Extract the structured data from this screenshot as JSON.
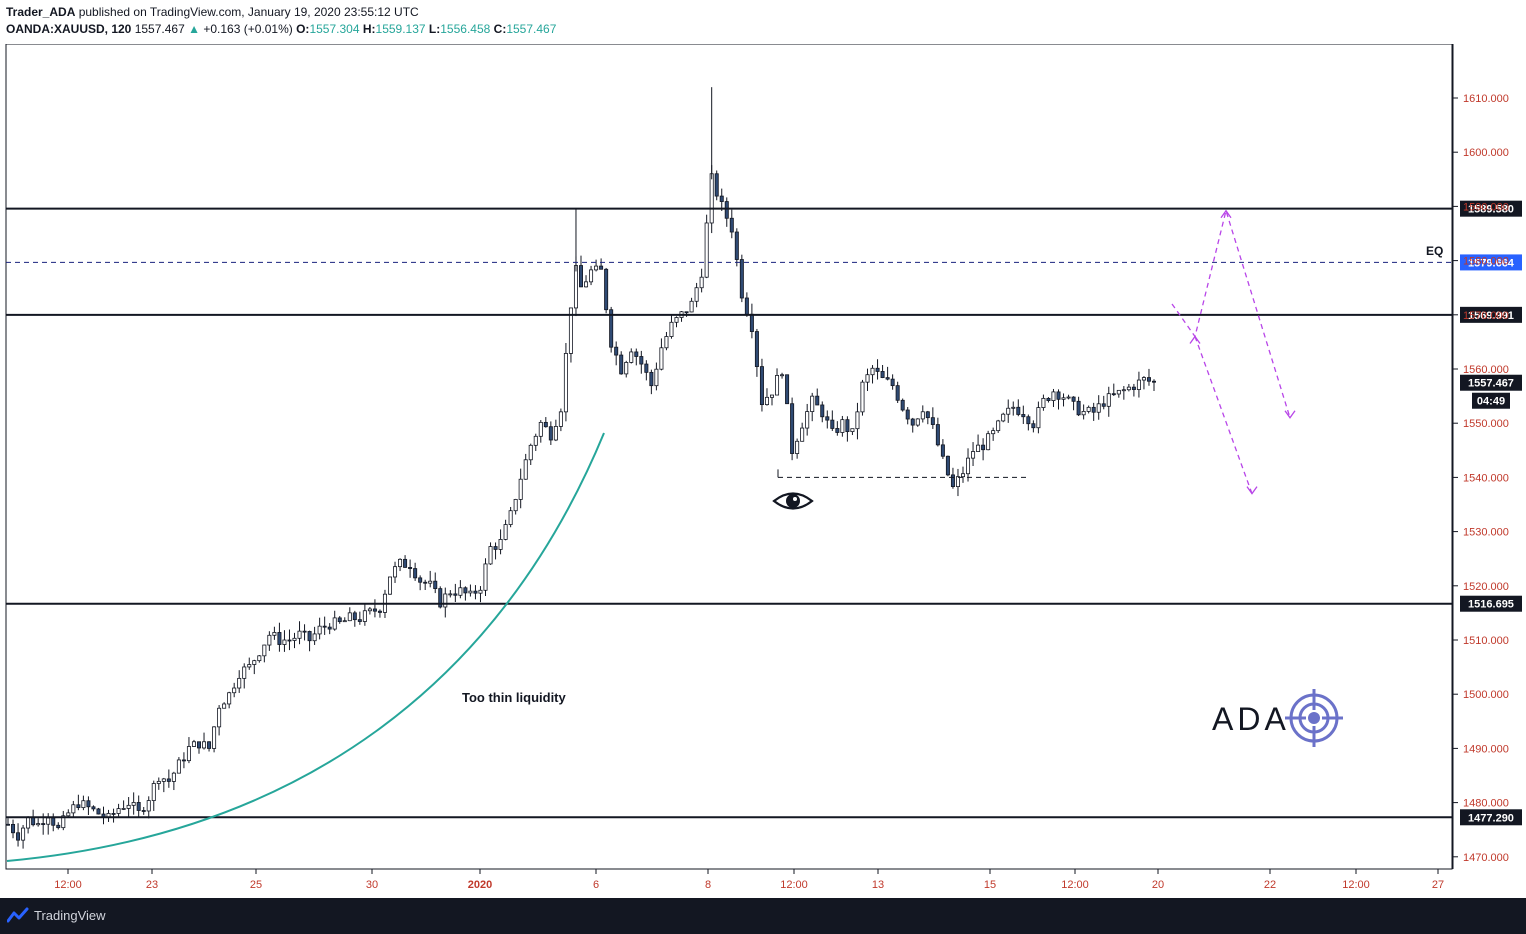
{
  "header": {
    "author": "Trader_ADA",
    "published_text": "published on TradingView.com, January 19, 2020 23:55:12 UTC",
    "symbol": "OANDA:XAUUSD, 120",
    "last": "1557.467",
    "arrow": "▲",
    "change": "+0.163 (+0.01%)",
    "o_label": "O:",
    "o_value": "1557.304",
    "h_label": "H:",
    "h_value": "1559.137",
    "l_label": "L:",
    "l_value": "1556.458",
    "c_label": "C:",
    "c_value": "1557.467"
  },
  "footer": {
    "brand": "TradingView",
    "logo_icon": "tradingview-logo-icon"
  },
  "annotations": {
    "eq_label": "EQ",
    "liquidity_text": "Too thin liquidity",
    "watermark": "ADA",
    "watermark_icon": "target-crosshair-icon",
    "eye_icon": "eye-icon"
  },
  "colors": {
    "candle_up": "#ffffff",
    "candle_down": "#2f4a73",
    "wick": "#131722",
    "eq_line": "#1a237e",
    "projection": "#b845e8",
    "curve": "#26a69a",
    "price_label_bg": "#131722",
    "current_price_bg": "#131722",
    "eq_label_bg": "#2962ff",
    "axis_text": "#c0392b",
    "watermark_icon": "#6b72c9"
  },
  "chart_data": {
    "type": "candlestick",
    "symbol": "OANDA:XAUUSD",
    "interval": "120",
    "y_axis": {
      "ticks": [
        1470,
        1480,
        1490,
        1500,
        1510,
        1520,
        1530,
        1540,
        1550,
        1560,
        1570,
        1580,
        1590,
        1600,
        1610
      ],
      "tick_labels": [
        "1470.000",
        "1480.000",
        "1490.000",
        "1500.000",
        "1510.000",
        "1520.000",
        "1530.000",
        "1540.000",
        "1550.000",
        "1560.000",
        "1570.000",
        "1580.000",
        "1590.000",
        "1600.000",
        "1610.000"
      ],
      "range": [
        1465,
        1623
      ]
    },
    "x_axis": {
      "labels": [
        "12:00",
        "23",
        "25",
        "30",
        "2020",
        "6",
        "8",
        "12:00",
        "13",
        "15",
        "12:00",
        "20",
        "22",
        "12:00",
        "27"
      ],
      "bold": [
        "2020"
      ]
    },
    "horizontal_levels": [
      {
        "price": 1589.58,
        "label": "1589.580",
        "style": "solid"
      },
      {
        "price": 1579.664,
        "label": "1579.664",
        "style": "dashed",
        "name": "EQ"
      },
      {
        "price": 1569.991,
        "label": "1569.991",
        "style": "solid"
      },
      {
        "price": 1516.695,
        "label": "1516.695",
        "style": "solid"
      },
      {
        "price": 1477.29,
        "label": "1477.290",
        "style": "solid"
      }
    ],
    "current_price": {
      "price": 1557.467,
      "label": "1557.467",
      "countdown": "04:49"
    },
    "liquidity_level": {
      "price": 1540.0
    },
    "price_path": [
      [
        0,
        1476
      ],
      [
        2,
        1474
      ],
      [
        4,
        1477
      ],
      [
        6,
        1476
      ],
      [
        8,
        1478
      ],
      [
        10,
        1475
      ],
      [
        12,
        1478
      ],
      [
        14,
        1480
      ],
      [
        16,
        1479
      ],
      [
        18,
        1478
      ],
      [
        20,
        1477
      ],
      [
        22,
        1479
      ],
      [
        24,
        1480
      ],
      [
        26,
        1478
      ],
      [
        28,
        1481
      ],
      [
        30,
        1485
      ],
      [
        32,
        1484
      ],
      [
        34,
        1487
      ],
      [
        36,
        1490
      ],
      [
        38,
        1491
      ],
      [
        40,
        1490
      ],
      [
        42,
        1498
      ],
      [
        44,
        1500
      ],
      [
        46,
        1504
      ],
      [
        48,
        1505
      ],
      [
        50,
        1508
      ],
      [
        52,
        1511
      ],
      [
        54,
        1510
      ],
      [
        56,
        1510
      ],
      [
        58,
        1511
      ],
      [
        60,
        1510
      ],
      [
        62,
        1512
      ],
      [
        64,
        1513
      ],
      [
        66,
        1513
      ],
      [
        68,
        1514
      ],
      [
        70,
        1514
      ],
      [
        72,
        1515
      ],
      [
        74,
        1516
      ],
      [
        76,
        1522
      ],
      [
        78,
        1524
      ],
      [
        80,
        1524
      ],
      [
        82,
        1521
      ],
      [
        84,
        1520
      ],
      [
        86,
        1517
      ],
      [
        88,
        1519
      ],
      [
        90,
        1519
      ],
      [
        92,
        1518
      ],
      [
        94,
        1520
      ],
      [
        96,
        1527
      ],
      [
        98,
        1528
      ],
      [
        100,
        1533
      ],
      [
        102,
        1540
      ],
      [
        104,
        1546
      ],
      [
        106,
        1550
      ],
      [
        108,
        1548
      ],
      [
        110,
        1553
      ],
      [
        112,
        1572
      ],
      [
        113,
        1578
      ],
      [
        114,
        1575
      ],
      [
        116,
        1578
      ],
      [
        118,
        1578
      ],
      [
        120,
        1565
      ],
      [
        122,
        1560
      ],
      [
        124,
        1564
      ],
      [
        126,
        1561
      ],
      [
        128,
        1557
      ],
      [
        130,
        1564
      ],
      [
        132,
        1568
      ],
      [
        134,
        1570
      ],
      [
        136,
        1572
      ],
      [
        138,
        1578
      ],
      [
        140,
        1595
      ],
      [
        142,
        1590
      ],
      [
        144,
        1586
      ],
      [
        146,
        1574
      ],
      [
        148,
        1568
      ],
      [
        150,
        1554
      ],
      [
        152,
        1556
      ],
      [
        154,
        1560
      ],
      [
        156,
        1545
      ],
      [
        158,
        1550
      ],
      [
        160,
        1554
      ],
      [
        162,
        1552
      ],
      [
        164,
        1548
      ],
      [
        166,
        1550
      ],
      [
        168,
        1548
      ],
      [
        170,
        1557
      ],
      [
        172,
        1560
      ],
      [
        174,
        1558
      ],
      [
        176,
        1557
      ],
      [
        178,
        1553
      ],
      [
        180,
        1550
      ],
      [
        182,
        1553
      ],
      [
        184,
        1549
      ],
      [
        186,
        1543
      ],
      [
        188,
        1538
      ],
      [
        190,
        1541
      ],
      [
        192,
        1545
      ],
      [
        194,
        1546
      ],
      [
        196,
        1548
      ],
      [
        198,
        1551
      ],
      [
        200,
        1553
      ],
      [
        202,
        1552
      ],
      [
        204,
        1550
      ],
      [
        206,
        1554
      ],
      [
        208,
        1556
      ],
      [
        210,
        1555
      ],
      [
        212,
        1553
      ],
      [
        214,
        1552
      ],
      [
        216,
        1552
      ],
      [
        218,
        1554
      ],
      [
        220,
        1555
      ],
      [
        222,
        1556
      ],
      [
        224,
        1557
      ],
      [
        226,
        1558
      ],
      [
        228,
        1557.467
      ]
    ],
    "projections": [
      {
        "style": "dashed",
        "name": "path A",
        "points": [
          [
            1572,
            0
          ],
          [
            1565,
            9
          ],
          [
            1589,
            19
          ],
          [
            1552,
            33
          ]
        ]
      },
      {
        "style": "dashed",
        "name": "path B",
        "points": [
          [
            1563,
            0
          ],
          [
            1537,
            15
          ]
        ]
      }
    ]
  }
}
